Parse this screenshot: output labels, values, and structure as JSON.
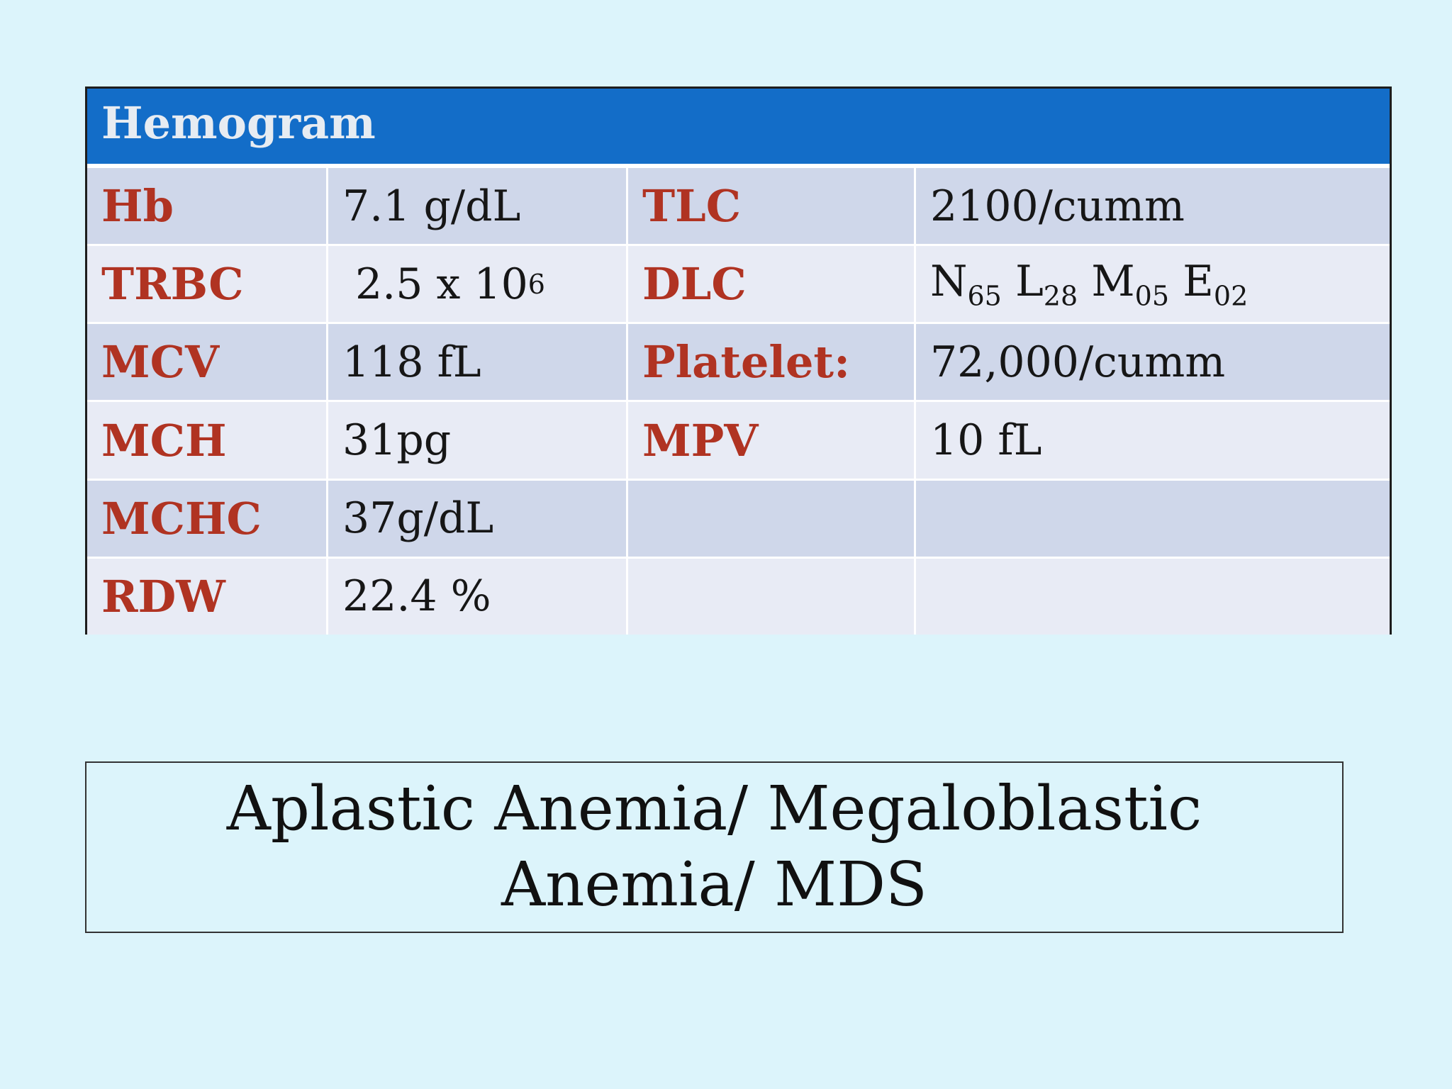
{
  "table": {
    "title": "Hemogram",
    "rows": [
      {
        "l1": "Hb",
        "v1": "7.1 g/dL",
        "l2": "TLC",
        "v2": "2100/cumm"
      },
      {
        "l1": "TRBC",
        "v1_base": "2.5 x 10",
        "v1_exp": "6",
        "l2": "DLC",
        "dlc": [
          {
            "letter": "N",
            "sub": "65"
          },
          {
            "letter": "L",
            "sub": "28"
          },
          {
            "letter": "M",
            "sub": "05"
          },
          {
            "letter": "E",
            "sub": "02"
          }
        ]
      },
      {
        "l1": "MCV",
        "v1": "118 fL",
        "l2": "Platelet:",
        "v2": "72,000/cumm"
      },
      {
        "l1": "MCH",
        "v1": "31pg",
        "l2": "MPV",
        "v2": "10 fL"
      },
      {
        "l1": "MCHC",
        "v1": "37g/dL",
        "l2": "",
        "v2": ""
      },
      {
        "l1": "RDW",
        "v1": "22.4 %",
        "l2": "",
        "v2": ""
      }
    ]
  },
  "diagnosis": {
    "text": "Aplastic Anemia/ Megaloblastic Anemia/ MDS"
  }
}
